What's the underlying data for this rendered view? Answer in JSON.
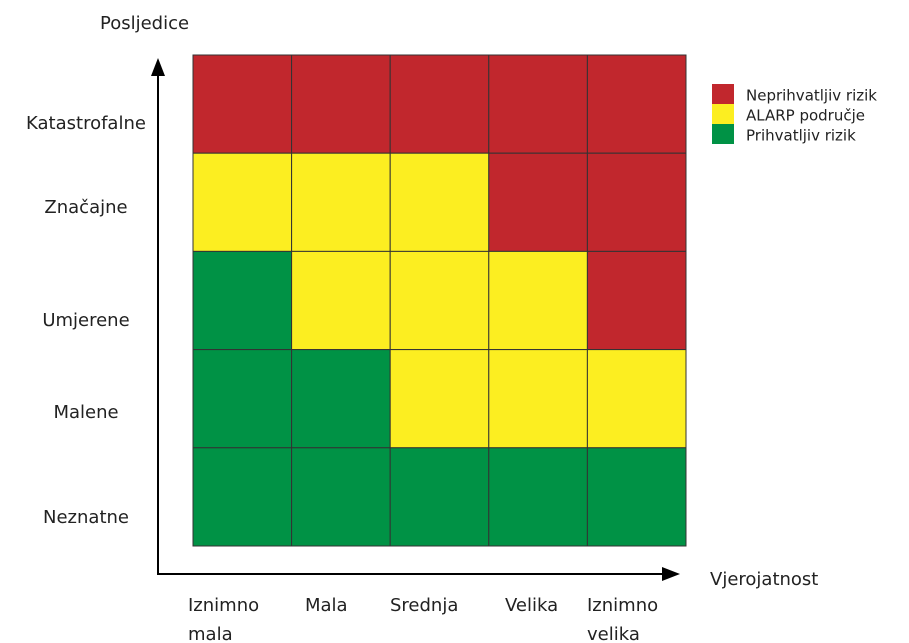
{
  "y_axis_title": "Posljedice",
  "x_axis_title": "Vjerojatnost",
  "rows": [
    "Katastrofalne",
    "Značajne",
    "Umjerene",
    "Malene",
    "Neznatne"
  ],
  "columns": [
    [
      "Iznimno",
      "mala"
    ],
    [
      "Mala"
    ],
    [
      "Srednja"
    ],
    [
      "Velika"
    ],
    [
      "Iznimno",
      "velika"
    ]
  ],
  "legend": [
    {
      "label": "Neprihvatljiv rizik",
      "color": "#c1272d"
    },
    {
      "label": "ALARP područje",
      "color": "#fcee21"
    },
    {
      "label": "Prihvatljiv rizik",
      "color": "#009245"
    }
  ],
  "cells": [
    [
      0,
      0,
      0,
      0,
      0
    ],
    [
      1,
      1,
      1,
      0,
      0
    ],
    [
      2,
      1,
      1,
      1,
      0
    ],
    [
      2,
      2,
      1,
      1,
      1
    ],
    [
      2,
      2,
      2,
      2,
      2
    ]
  ]
}
